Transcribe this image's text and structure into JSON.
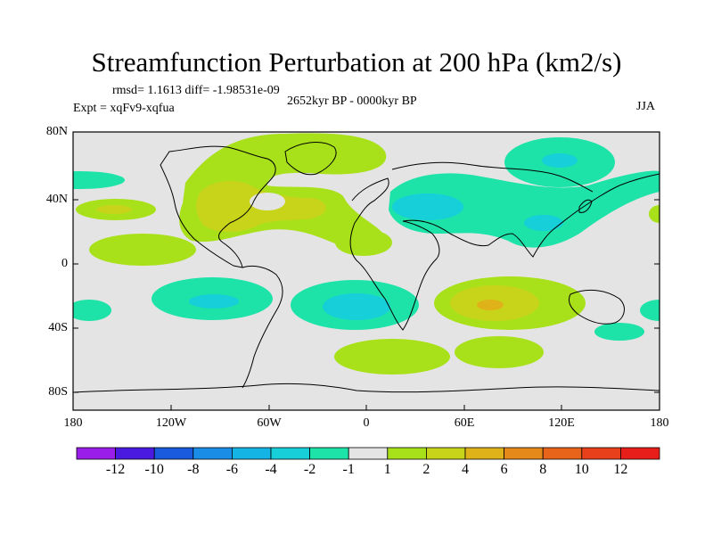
{
  "title": "Streamfunction Perturbation at 200 hPa (km2/s)",
  "stats_line": "rmsd= 1.1613 diff= -1.98531e-09",
  "period": "2652kyr BP - 0000kyr BP",
  "experiment": "Expt = xqFv9-xqfua",
  "season": "JJA",
  "lat_labels": [
    "80N",
    "40N",
    "0",
    "40S",
    "80S"
  ],
  "lon_labels": [
    "180",
    "120W",
    "60W",
    "0",
    "60E",
    "120E",
    "180"
  ],
  "colorbar": {
    "colors": [
      "#9a1dea",
      "#4a1ae0",
      "#1a5bdd",
      "#1a8ee6",
      "#14b4e4",
      "#16cfd9",
      "#1de3a8",
      "#e4e4e4",
      "#a8e11a",
      "#c8d41a",
      "#e0b21a",
      "#e58a1a",
      "#e8641a",
      "#e8401a",
      "#e81e1a"
    ],
    "labels": [
      "-12",
      "-10",
      "-8",
      "-6",
      "-4",
      "-2",
      "-1",
      "1",
      "2",
      "4",
      "6",
      "8",
      "10",
      "12"
    ]
  },
  "colors": {
    "background": "#e4e4e4",
    "coastline": "#000000"
  }
}
